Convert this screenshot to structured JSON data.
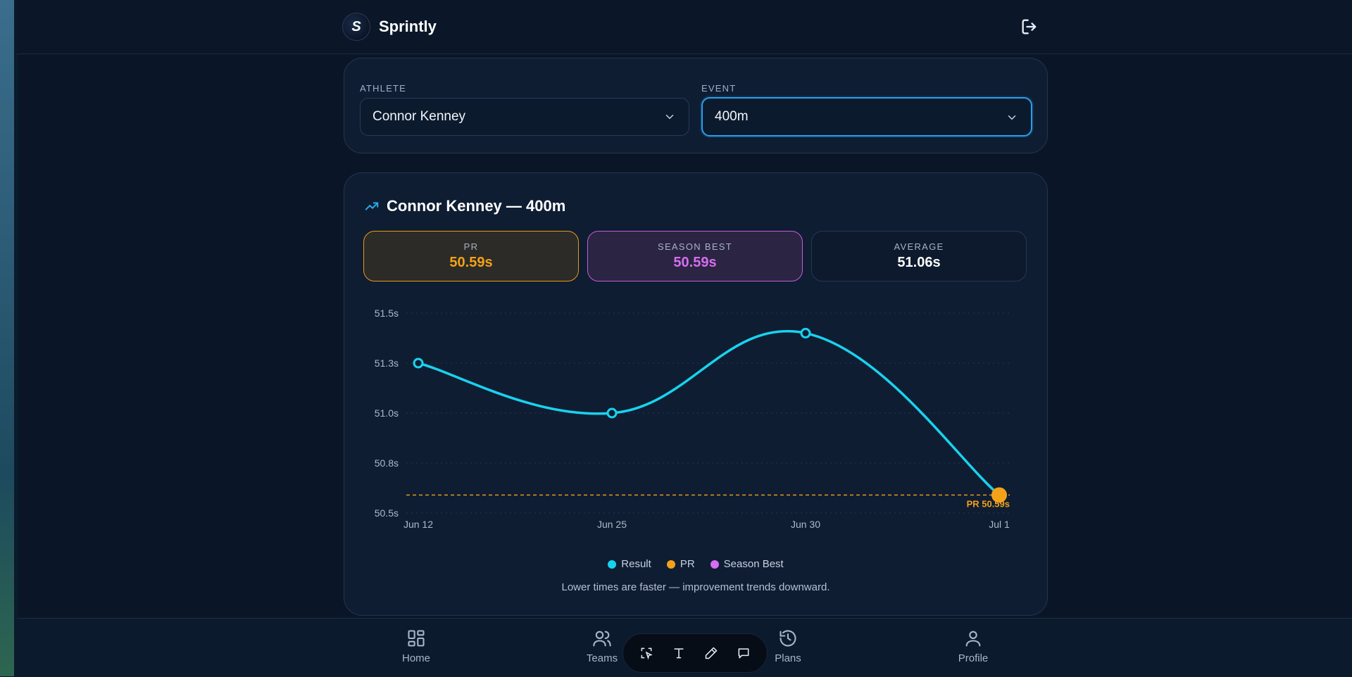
{
  "app": {
    "name": "Sprintly",
    "logo_text": "S"
  },
  "selectors": {
    "athlete": {
      "label": "ATHLETE",
      "value": "Connor Kenney"
    },
    "event": {
      "label": "EVENT",
      "value": "400m"
    }
  },
  "chart_card": {
    "title": "Connor Kenney — 400m",
    "stats": {
      "pr": {
        "label": "PR",
        "value": "50.59s"
      },
      "season_best": {
        "label": "SEASON BEST",
        "value": "50.59s"
      },
      "average": {
        "label": "AVERAGE",
        "value": "51.06s"
      }
    },
    "legend": [
      "Result",
      "PR",
      "Season Best"
    ],
    "note": "Lower times are faster — improvement trends downward."
  },
  "chart_data": {
    "type": "line",
    "x": [
      "Jun 12",
      "Jun 25",
      "Jun 30",
      "Jul 1"
    ],
    "series": [
      {
        "name": "Result",
        "values": [
          51.25,
          51.0,
          51.4,
          50.59
        ]
      }
    ],
    "pr_line": {
      "value": 50.59,
      "label": "PR 50.59s"
    },
    "y_ticks": [
      "51.5s",
      "51.3s",
      "51.0s",
      "50.8s",
      "50.5s"
    ],
    "ylim": [
      50.5,
      51.5
    ],
    "grid": true,
    "legend_position": "bottom-center",
    "colors": {
      "result": "#19d3ee",
      "pr": "#f4a11a",
      "season_best": "#d56ef0"
    }
  },
  "nav": {
    "items": [
      "Home",
      "Teams",
      "Plans",
      "Profile"
    ]
  },
  "toolbar": {
    "icons": [
      "select-area-icon",
      "text-icon",
      "pen-icon",
      "comment-icon"
    ]
  }
}
